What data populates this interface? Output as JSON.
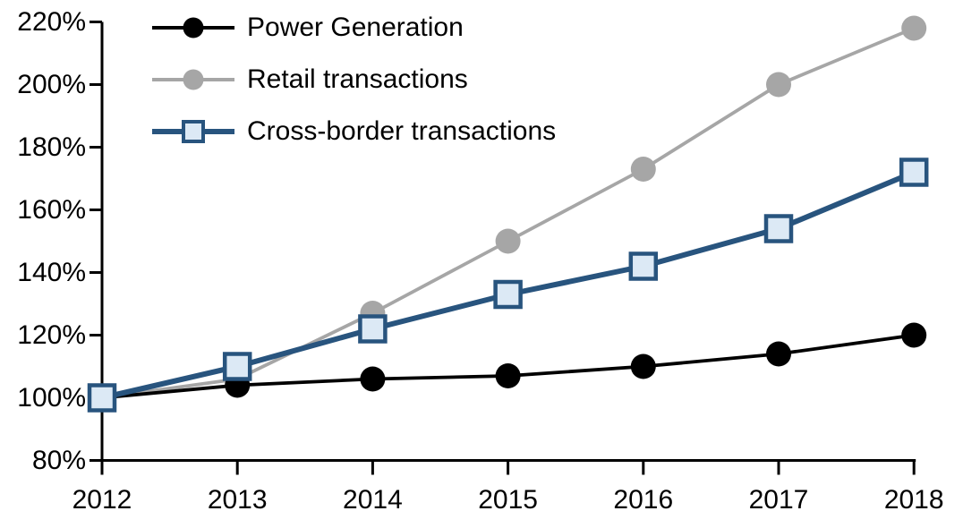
{
  "chart_data": {
    "type": "line",
    "title": "",
    "xlabel": "",
    "ylabel": "",
    "grid": false,
    "legend_position": "top-left",
    "x": [
      2012,
      2013,
      2014,
      2015,
      2016,
      2017,
      2018
    ],
    "x_tick_labels": [
      "2012",
      "2013",
      "2014",
      "2015",
      "2016",
      "2017",
      "2018"
    ],
    "y_tick_labels": [
      "80%",
      "100%",
      "120%",
      "140%",
      "160%",
      "180%",
      "200%",
      "220%"
    ],
    "ylim": [
      80,
      220
    ],
    "ytick_step": 20,
    "axis_color": "#000000",
    "series": [
      {
        "name": "Power Generation",
        "values": [
          100,
          104,
          106,
          107,
          110,
          114,
          120
        ],
        "color": "#000000",
        "marker": "circle",
        "marker_fill": "#000000"
      },
      {
        "name": "Retail transactions",
        "values": [
          100,
          106,
          127,
          150,
          173,
          200,
          218
        ],
        "color": "#a6a6a6",
        "marker": "circle",
        "marker_fill": "#a6a6a6"
      },
      {
        "name": "Cross-border transactions",
        "values": [
          100,
          110,
          122,
          133,
          142,
          154,
          172
        ],
        "color": "#28547e",
        "marker": "square",
        "marker_fill": "#dce9f5",
        "marker_border": "#28547e"
      }
    ]
  }
}
